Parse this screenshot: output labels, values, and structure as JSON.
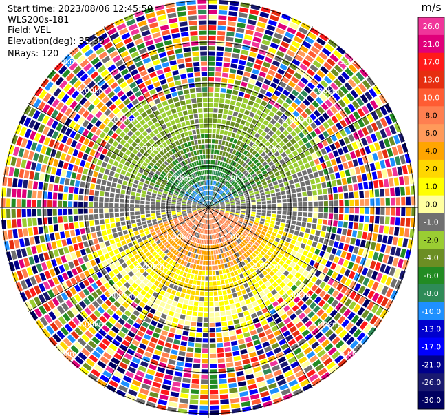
{
  "header": {
    "start_time": "Start time: 2023/08/06 12:45:50",
    "instrument": "WLS200s-181",
    "field": "Field: VEL",
    "elevation": "Elevation(deg): 35.30",
    "nrays": "NRays: 120"
  },
  "chart_data": {
    "type": "heatmap",
    "projection": "polar PPI",
    "rays": 120,
    "range_rings_km": [
      1,
      2,
      3,
      4,
      5
    ],
    "range_ring_label_text": [
      "1.00km",
      "2.00km",
      "3.00km",
      "4.00km",
      "5.00km"
    ],
    "spokes_deg": [
      0,
      30,
      60,
      90,
      120,
      150,
      180,
      210,
      240,
      270,
      300,
      330
    ],
    "colorbar": {
      "unit": "m/s",
      "range": [
        -30.0,
        26.0
      ],
      "tick_labels": [
        "26.0",
        "21.0",
        "17.0",
        "13.0",
        "10.0",
        "8.0",
        "6.0",
        "4.0",
        "2.0",
        "1.0",
        "0.0",
        "-1.0",
        "-2.0",
        "-4.0",
        "-6.0",
        "-8.0",
        "-10.0",
        "-13.0",
        "-17.0",
        "-21.0",
        "-26.0",
        "-30.0"
      ],
      "bin_colors": [
        "#f0359a",
        "#e0007a",
        "#ff1a1a",
        "#e62e10",
        "#ff5c33",
        "#ff7f50",
        "#ff9a5a",
        "#ffa500",
        "#ffd700",
        "#ffff00",
        "#ffffa0",
        "#707070",
        "#9acd32",
        "#6b8e23",
        "#228b22",
        "#2e8b57",
        "#1e90ff",
        "#0000cd",
        "#0000ff",
        "#00008b",
        "#191970",
        "#000060"
      ]
    },
    "field_summary": {
      "near_range_km": 3.0,
      "approaching_sector": "north (green to blue, about -2 to -8 m/s)",
      "receding_sector": "south (yellow to orange, about 2 to 8 m/s)",
      "cross_beam": "east and west (grey, about 0 m/s)",
      "far_range": "noise, all colors"
    }
  }
}
